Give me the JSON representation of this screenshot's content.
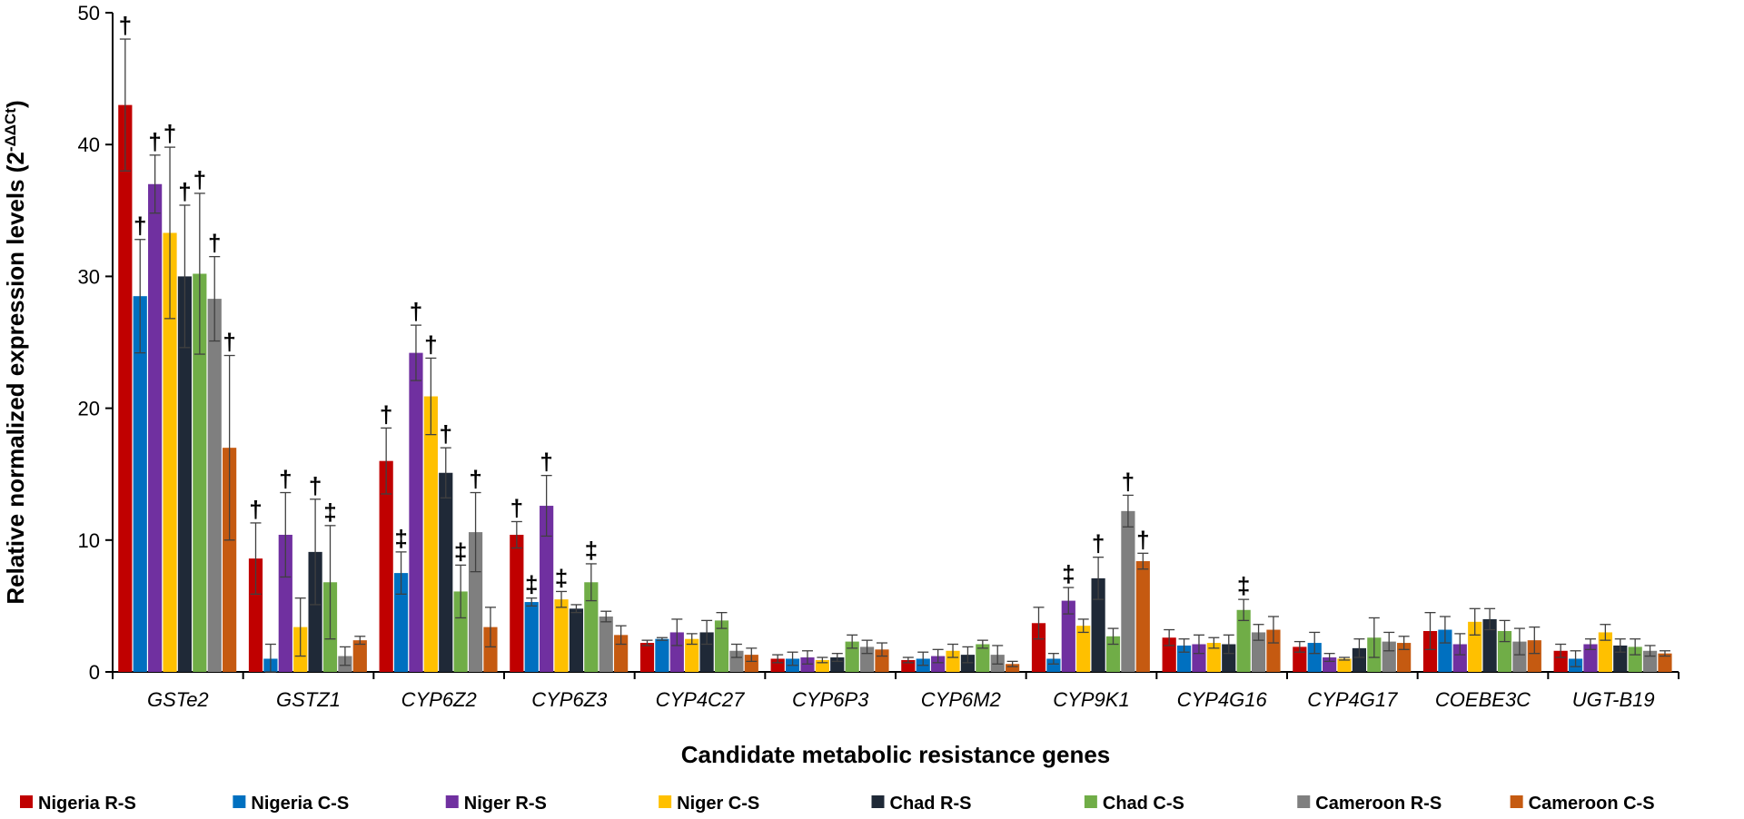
{
  "chart_data": {
    "type": "bar",
    "title": "",
    "xlabel": "Candidate metabolic resistance genes",
    "ylabel": "Relative normalized expression levels (2",
    "ylabel_superscript": "-ΔΔCt",
    "ylabel_close": ")",
    "ylim": [
      0,
      50
    ],
    "yticks": [
      0,
      10,
      20,
      30,
      40,
      50
    ],
    "legend_position": "bottom",
    "categories": [
      "GSTe2",
      "GSTZ1",
      "CYP6Z2",
      "CYP6Z3",
      "CYP4C27",
      "CYP6P3",
      "CYP6M2",
      "CYP9K1",
      "CYP4G16",
      "CYP4G17",
      "COEBE3C",
      "UGT-B19"
    ],
    "series": [
      {
        "name": "Nigeria R-S",
        "color": "#c00000",
        "values": [
          43.0,
          8.6,
          16.0,
          10.4,
          2.2,
          1.0,
          0.9,
          3.7,
          2.6,
          1.9,
          3.1,
          1.6
        ],
        "errors": [
          5.0,
          2.7,
          2.5,
          1.0,
          0.2,
          0.3,
          0.2,
          1.2,
          0.6,
          0.4,
          1.4,
          0.5
        ],
        "marks": [
          "†",
          "†",
          "†",
          "†",
          "",
          "",
          "",
          "",
          "",
          "",
          "",
          ""
        ]
      },
      {
        "name": "Nigeria C-S",
        "color": "#0070c0",
        "values": [
          28.5,
          1.0,
          7.5,
          5.3,
          2.5,
          1.0,
          1.0,
          1.0,
          2.0,
          2.2,
          3.2,
          1.0
        ],
        "errors": [
          4.3,
          1.1,
          1.6,
          0.3,
          0.1,
          0.5,
          0.5,
          0.4,
          0.5,
          0.8,
          1.0,
          0.6
        ],
        "marks": [
          "†",
          "",
          "‡",
          "‡",
          "",
          "",
          "",
          "",
          "",
          "",
          "",
          ""
        ]
      },
      {
        "name": "Niger R-S",
        "color": "#7030a0",
        "values": [
          37.0,
          10.4,
          24.2,
          12.6,
          3.0,
          1.1,
          1.2,
          5.4,
          2.1,
          1.1,
          2.1,
          2.1
        ],
        "errors": [
          2.2,
          3.2,
          2.1,
          2.3,
          1.0,
          0.5,
          0.5,
          1.0,
          0.7,
          0.3,
          0.8,
          0.4
        ],
        "marks": [
          "†",
          "†",
          "†",
          "†",
          "",
          "",
          "",
          "‡",
          "",
          "",
          "",
          ""
        ]
      },
      {
        "name": "Niger C-S",
        "color": "#ffc000",
        "values": [
          33.3,
          3.4,
          20.9,
          5.5,
          2.5,
          0.9,
          1.6,
          3.5,
          2.2,
          1.0,
          3.8,
          3.0
        ],
        "errors": [
          6.5,
          2.2,
          2.9,
          0.6,
          0.4,
          0.2,
          0.5,
          0.5,
          0.4,
          0.1,
          1.0,
          0.6
        ],
        "marks": [
          "†",
          "",
          "†",
          "‡",
          "",
          "",
          "",
          "",
          "",
          "",
          "",
          ""
        ]
      },
      {
        "name": "Chad R-S",
        "color": "#1f2937",
        "values": [
          30.0,
          9.1,
          15.1,
          4.8,
          3.0,
          1.1,
          1.3,
          7.1,
          2.1,
          1.8,
          4.0,
          2.0
        ],
        "errors": [
          5.4,
          4.0,
          1.9,
          0.3,
          0.9,
          0.3,
          0.6,
          1.6,
          0.7,
          0.7,
          0.8,
          0.5
        ],
        "marks": [
          "†",
          "†",
          "†",
          "",
          "",
          "",
          "",
          "†",
          "",
          "",
          "",
          ""
        ]
      },
      {
        "name": "Chad C-S",
        "color": "#70ad47",
        "values": [
          30.2,
          6.8,
          6.1,
          6.8,
          3.9,
          2.3,
          2.1,
          2.7,
          4.7,
          2.6,
          3.1,
          1.9
        ],
        "errors": [
          6.1,
          4.3,
          2.0,
          1.4,
          0.6,
          0.5,
          0.3,
          0.6,
          0.8,
          1.5,
          0.8,
          0.6
        ],
        "marks": [
          "†",
          "‡",
          "‡",
          "‡",
          "",
          "",
          "",
          "",
          "‡",
          "",
          "",
          ""
        ]
      },
      {
        "name": "Cameroon R-S",
        "color": "#7f7f7f",
        "values": [
          28.3,
          1.2,
          10.6,
          4.2,
          1.6,
          1.9,
          1.3,
          12.2,
          3.0,
          2.3,
          2.3,
          1.6
        ],
        "errors": [
          3.2,
          0.7,
          3.0,
          0.4,
          0.5,
          0.5,
          0.7,
          1.2,
          0.6,
          0.7,
          1.0,
          0.4
        ],
        "marks": [
          "†",
          "",
          "†",
          "",
          "",
          "",
          "",
          "†",
          "",
          "",
          "",
          ""
        ]
      },
      {
        "name": "Cameroon C-S",
        "color": "#c55a11",
        "values": [
          17.0,
          2.4,
          3.4,
          2.8,
          1.3,
          1.7,
          0.6,
          8.4,
          3.2,
          2.2,
          2.4,
          1.4
        ],
        "errors": [
          7.0,
          0.3,
          1.5,
          0.7,
          0.5,
          0.5,
          0.2,
          0.6,
          1.0,
          0.5,
          1.0,
          0.2
        ],
        "marks": [
          "†",
          "",
          "",
          "",
          "",
          "",
          "",
          "†",
          "",
          "",
          "",
          ""
        ]
      }
    ]
  }
}
